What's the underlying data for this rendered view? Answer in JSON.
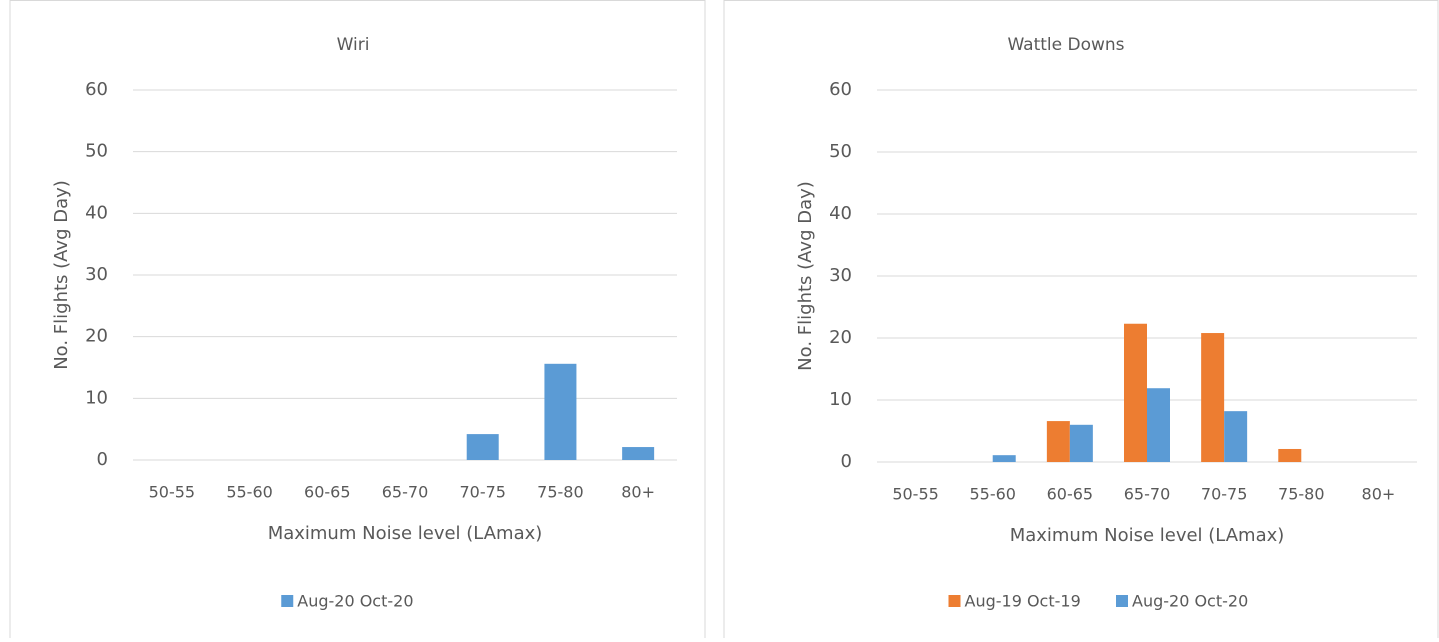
{
  "chart_data": [
    {
      "type": "bar",
      "title": "Wiri",
      "x_label": "Maximum Noise level (LAmax)",
      "y_label": "No. Flights (Avg Day)",
      "categories": [
        "50-55",
        "55-60",
        "60-65",
        "65-70",
        "70-75",
        "75-80",
        "80+"
      ],
      "series": [
        {
          "name": "Aug-20 Oct-20",
          "color": "#5b9bd5",
          "values": [
            0,
            0,
            0,
            0,
            4.2,
            15.6,
            2.1
          ]
        }
      ],
      "ylim": [
        0,
        60
      ],
      "yticks": [
        0,
        10,
        20,
        30,
        40,
        50,
        60
      ],
      "grid": true,
      "legend": "bottom"
    },
    {
      "type": "bar",
      "title": "Wattle Downs",
      "x_label": "Maximum Noise level (LAmax)",
      "y_label": "No. Flights (Avg Day)",
      "categories": [
        "50-55",
        "55-60",
        "60-65",
        "65-70",
        "70-75",
        "75-80",
        "80+"
      ],
      "series": [
        {
          "name": "Aug-19 Oct-19",
          "color": "#ed7d31",
          "values": [
            0,
            0,
            6.6,
            22.3,
            20.8,
            2.1,
            0
          ]
        },
        {
          "name": "Aug-20 Oct-20",
          "color": "#5b9bd5",
          "values": [
            0,
            1.1,
            6,
            11.9,
            8.2,
            0,
            0
          ]
        }
      ],
      "ylim": [
        0,
        60
      ],
      "yticks": [
        0,
        10,
        20,
        30,
        40,
        50,
        60
      ],
      "grid": true,
      "legend": "bottom"
    }
  ]
}
